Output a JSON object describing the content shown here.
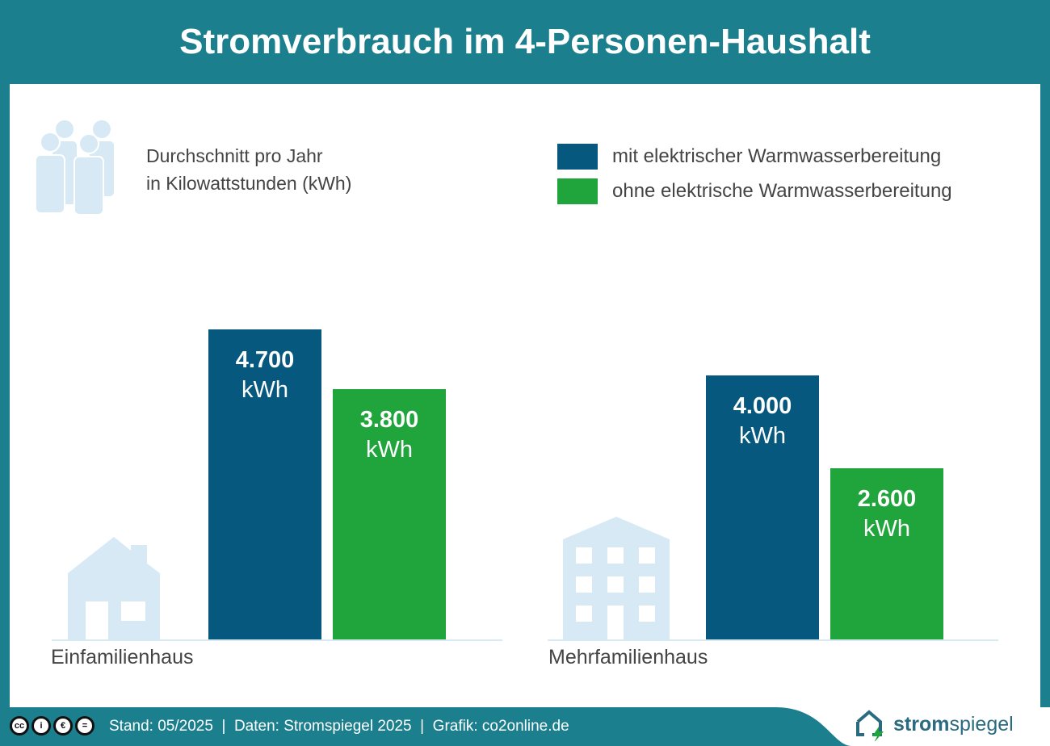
{
  "title": "Stromverbrauch im 4-Personen-Haushalt",
  "subtitle_line1": "Durchschnitt pro Jahr",
  "subtitle_line2": "in Kilowattstunden (kWh)",
  "colors": {
    "bg": "#1b7f8e",
    "series1": "#06587f",
    "series2": "#1fa53b",
    "icon": "#d6e9f5"
  },
  "chart_data": {
    "type": "bar",
    "title": "Stromverbrauch im 4-Personen-Haushalt",
    "ylabel": "Durchschnitt pro Jahr in Kilowattstunden (kWh)",
    "categories": [
      "Einfamilienhaus",
      "Mehrfamilienhaus"
    ],
    "unit": "kWh",
    "series": [
      {
        "name": "mit elektrischer Warmwasserbereitung",
        "values": [
          4700,
          4000
        ],
        "labels": [
          "4.700",
          "4.000"
        ]
      },
      {
        "name": "ohne elektrische Warmwasserbereitung",
        "values": [
          3800,
          2600
        ],
        "labels": [
          "3.800",
          "2.600"
        ]
      }
    ],
    "ylim": [
      0,
      4700
    ],
    "legend": "top-right",
    "grid": false
  },
  "footer": {
    "text": "Stand: 05/2025  |  Daten: Stromspiegel 2025  |  Grafik: co2online.de",
    "logo_bold": "strom",
    "logo_rest": "spiegel"
  }
}
